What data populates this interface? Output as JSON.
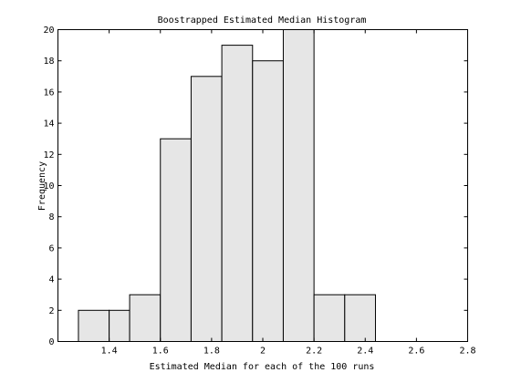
{
  "chart_data": {
    "type": "bar",
    "title": "Boostrapped Estimated Median Histogram",
    "xlabel": "Estimated Median for each of the 100 runs",
    "ylabel": "Frequency",
    "xlim": [
      1.2,
      2.8
    ],
    "ylim": [
      0,
      20
    ],
    "xticks": [
      1.4,
      1.6,
      1.8,
      2,
      2.2,
      2.4,
      2.6,
      2.8
    ],
    "xtick_labels": [
      "1.4",
      "1.6",
      "1.8",
      "2",
      "2.2",
      "2.4",
      "2.6",
      "2.8"
    ],
    "yticks": [
      0,
      2,
      4,
      6,
      8,
      10,
      12,
      14,
      16,
      18,
      20
    ],
    "ytick_labels": [
      "0",
      "2",
      "4",
      "6",
      "8",
      "10",
      "12",
      "14",
      "16",
      "18",
      "20"
    ],
    "grid": false,
    "bins": [
      {
        "x0": 1.28,
        "x1": 1.4,
        "value": 2
      },
      {
        "x0": 1.4,
        "x1": 1.48,
        "value": 2
      },
      {
        "x0": 1.48,
        "x1": 1.6,
        "value": 3
      },
      {
        "x0": 1.6,
        "x1": 1.72,
        "value": 13
      },
      {
        "x0": 1.72,
        "x1": 1.84,
        "value": 17
      },
      {
        "x0": 1.84,
        "x1": 1.96,
        "value": 19
      },
      {
        "x0": 1.96,
        "x1": 2.08,
        "value": 18
      },
      {
        "x0": 2.08,
        "x1": 2.2,
        "value": 20
      },
      {
        "x0": 2.2,
        "x1": 2.32,
        "value": 3
      },
      {
        "x0": 2.32,
        "x1": 2.44,
        "value": 3
      }
    ]
  }
}
